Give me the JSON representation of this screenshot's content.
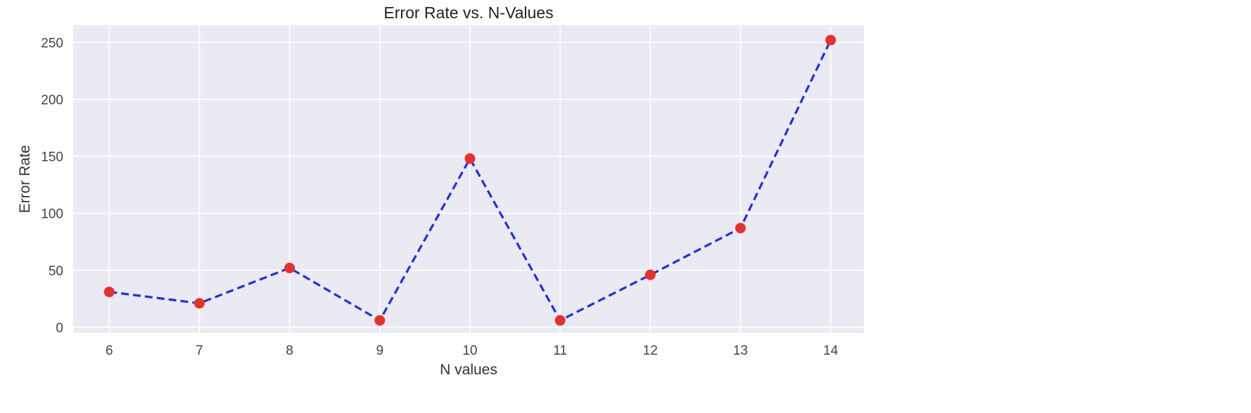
{
  "chart_data": {
    "type": "line",
    "title": "Error Rate vs. N-Values",
    "xlabel": "N values",
    "ylabel": "Error Rate",
    "x": [
      6,
      7,
      8,
      9,
      10,
      11,
      12,
      13,
      14
    ],
    "xticks": [
      "6",
      "7",
      "8",
      "9",
      "10",
      "11",
      "12",
      "13",
      "14"
    ],
    "yticks": [
      0,
      50,
      100,
      150,
      200,
      250
    ],
    "xlim": [
      5.6,
      14.37
    ],
    "ylim": [
      -5,
      265
    ],
    "grid": true,
    "legend": false,
    "series": [
      {
        "values": [
          31,
          21,
          52,
          6,
          148,
          6,
          46,
          87,
          252
        ],
        "line_color": "#1f2ef0",
        "line_style": "dashed",
        "marker_color": "#e8312a",
        "marker": "circle"
      }
    ],
    "colors": {
      "plot_background": "#eaeaf2",
      "grid": "#ffffff"
    }
  }
}
